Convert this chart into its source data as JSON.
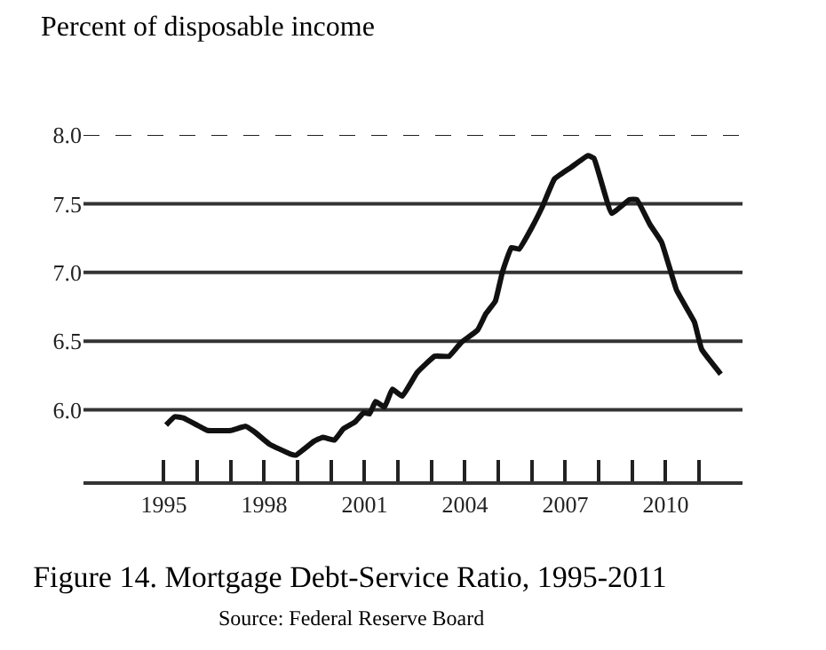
{
  "chart_data": {
    "type": "line",
    "title": "Figure 14. Mortgage Debt-Service Ratio, 1995-2011",
    "ylabel": "Percent of disposable income",
    "annotations": [
      "Source: Federal Reserve Board"
    ],
    "x": [
      1995.07,
      1995.33,
      1995.6,
      1996.31,
      1997.01,
      1997.45,
      1997.71,
      1998.16,
      1998.77,
      1998.95,
      1999.48,
      1999.75,
      2000.1,
      2000.36,
      2000.71,
      2000.98,
      2001.15,
      2001.33,
      2001.6,
      2001.83,
      2002.13,
      2002.57,
      2003.1,
      2003.53,
      2003.89,
      2004.38,
      2004.63,
      2004.91,
      2005.12,
      2005.39,
      2005.62,
      2006.01,
      2006.32,
      2006.68,
      2007.15,
      2007.68,
      2007.86,
      2008.39,
      2008.92,
      2009.14,
      2009.53,
      2009.88,
      2010.33,
      2010.86,
      2011.08,
      2011.65
    ],
    "series": [
      {
        "color": "#111111",
        "values": [
          5.89,
          5.95,
          5.94,
          5.85,
          5.85,
          5.88,
          5.84,
          5.75,
          5.68,
          5.67,
          5.77,
          5.8,
          5.78,
          5.86,
          5.91,
          5.98,
          5.97,
          6.06,
          6.02,
          6.15,
          6.1,
          6.27,
          6.39,
          6.39,
          6.49,
          6.58,
          6.7,
          6.79,
          7.0,
          7.18,
          7.17,
          7.33,
          7.48,
          7.68,
          7.76,
          7.85,
          7.83,
          7.43,
          7.53,
          7.53,
          7.35,
          7.22,
          6.87,
          6.64,
          6.44,
          6.26
        ]
      }
    ],
    "xlim": [
      1992.6,
      2012.3
    ],
    "xticks": [
      {
        "value": 1995,
        "label": "1995"
      },
      {
        "value": 1996,
        "label": null
      },
      {
        "value": 1997,
        "label": null
      },
      {
        "value": 1998,
        "label": "1998"
      },
      {
        "value": 1999,
        "label": null
      },
      {
        "value": 2000,
        "label": null
      },
      {
        "value": 2001,
        "label": "2001"
      },
      {
        "value": 2002,
        "label": null
      },
      {
        "value": 2003,
        "label": null
      },
      {
        "value": 2004,
        "label": "2004"
      },
      {
        "value": 2005,
        "label": null
      },
      {
        "value": 2006,
        "label": null
      },
      {
        "value": 2007,
        "label": "2007"
      },
      {
        "value": 2008,
        "label": null
      },
      {
        "value": 2009,
        "label": null
      },
      {
        "value": 2010,
        "label": "2010"
      },
      {
        "value": 2011,
        "label": null
      }
    ],
    "ylim": [
      5.48,
      8.0
    ],
    "yticks": [
      {
        "value": 6.0,
        "label": "6.0"
      },
      {
        "value": 6.5,
        "label": "6.5"
      },
      {
        "value": 7.0,
        "label": "7.0"
      },
      {
        "value": 7.5,
        "label": "7.5"
      },
      {
        "value": 8.0,
        "label": "8.0"
      }
    ],
    "ref_lines": [
      {
        "axis": "y",
        "value": 8.0,
        "line_style": "dashed",
        "color": "#222222"
      }
    ],
    "grid": "y",
    "marker": "none",
    "line_style": "solid"
  }
}
